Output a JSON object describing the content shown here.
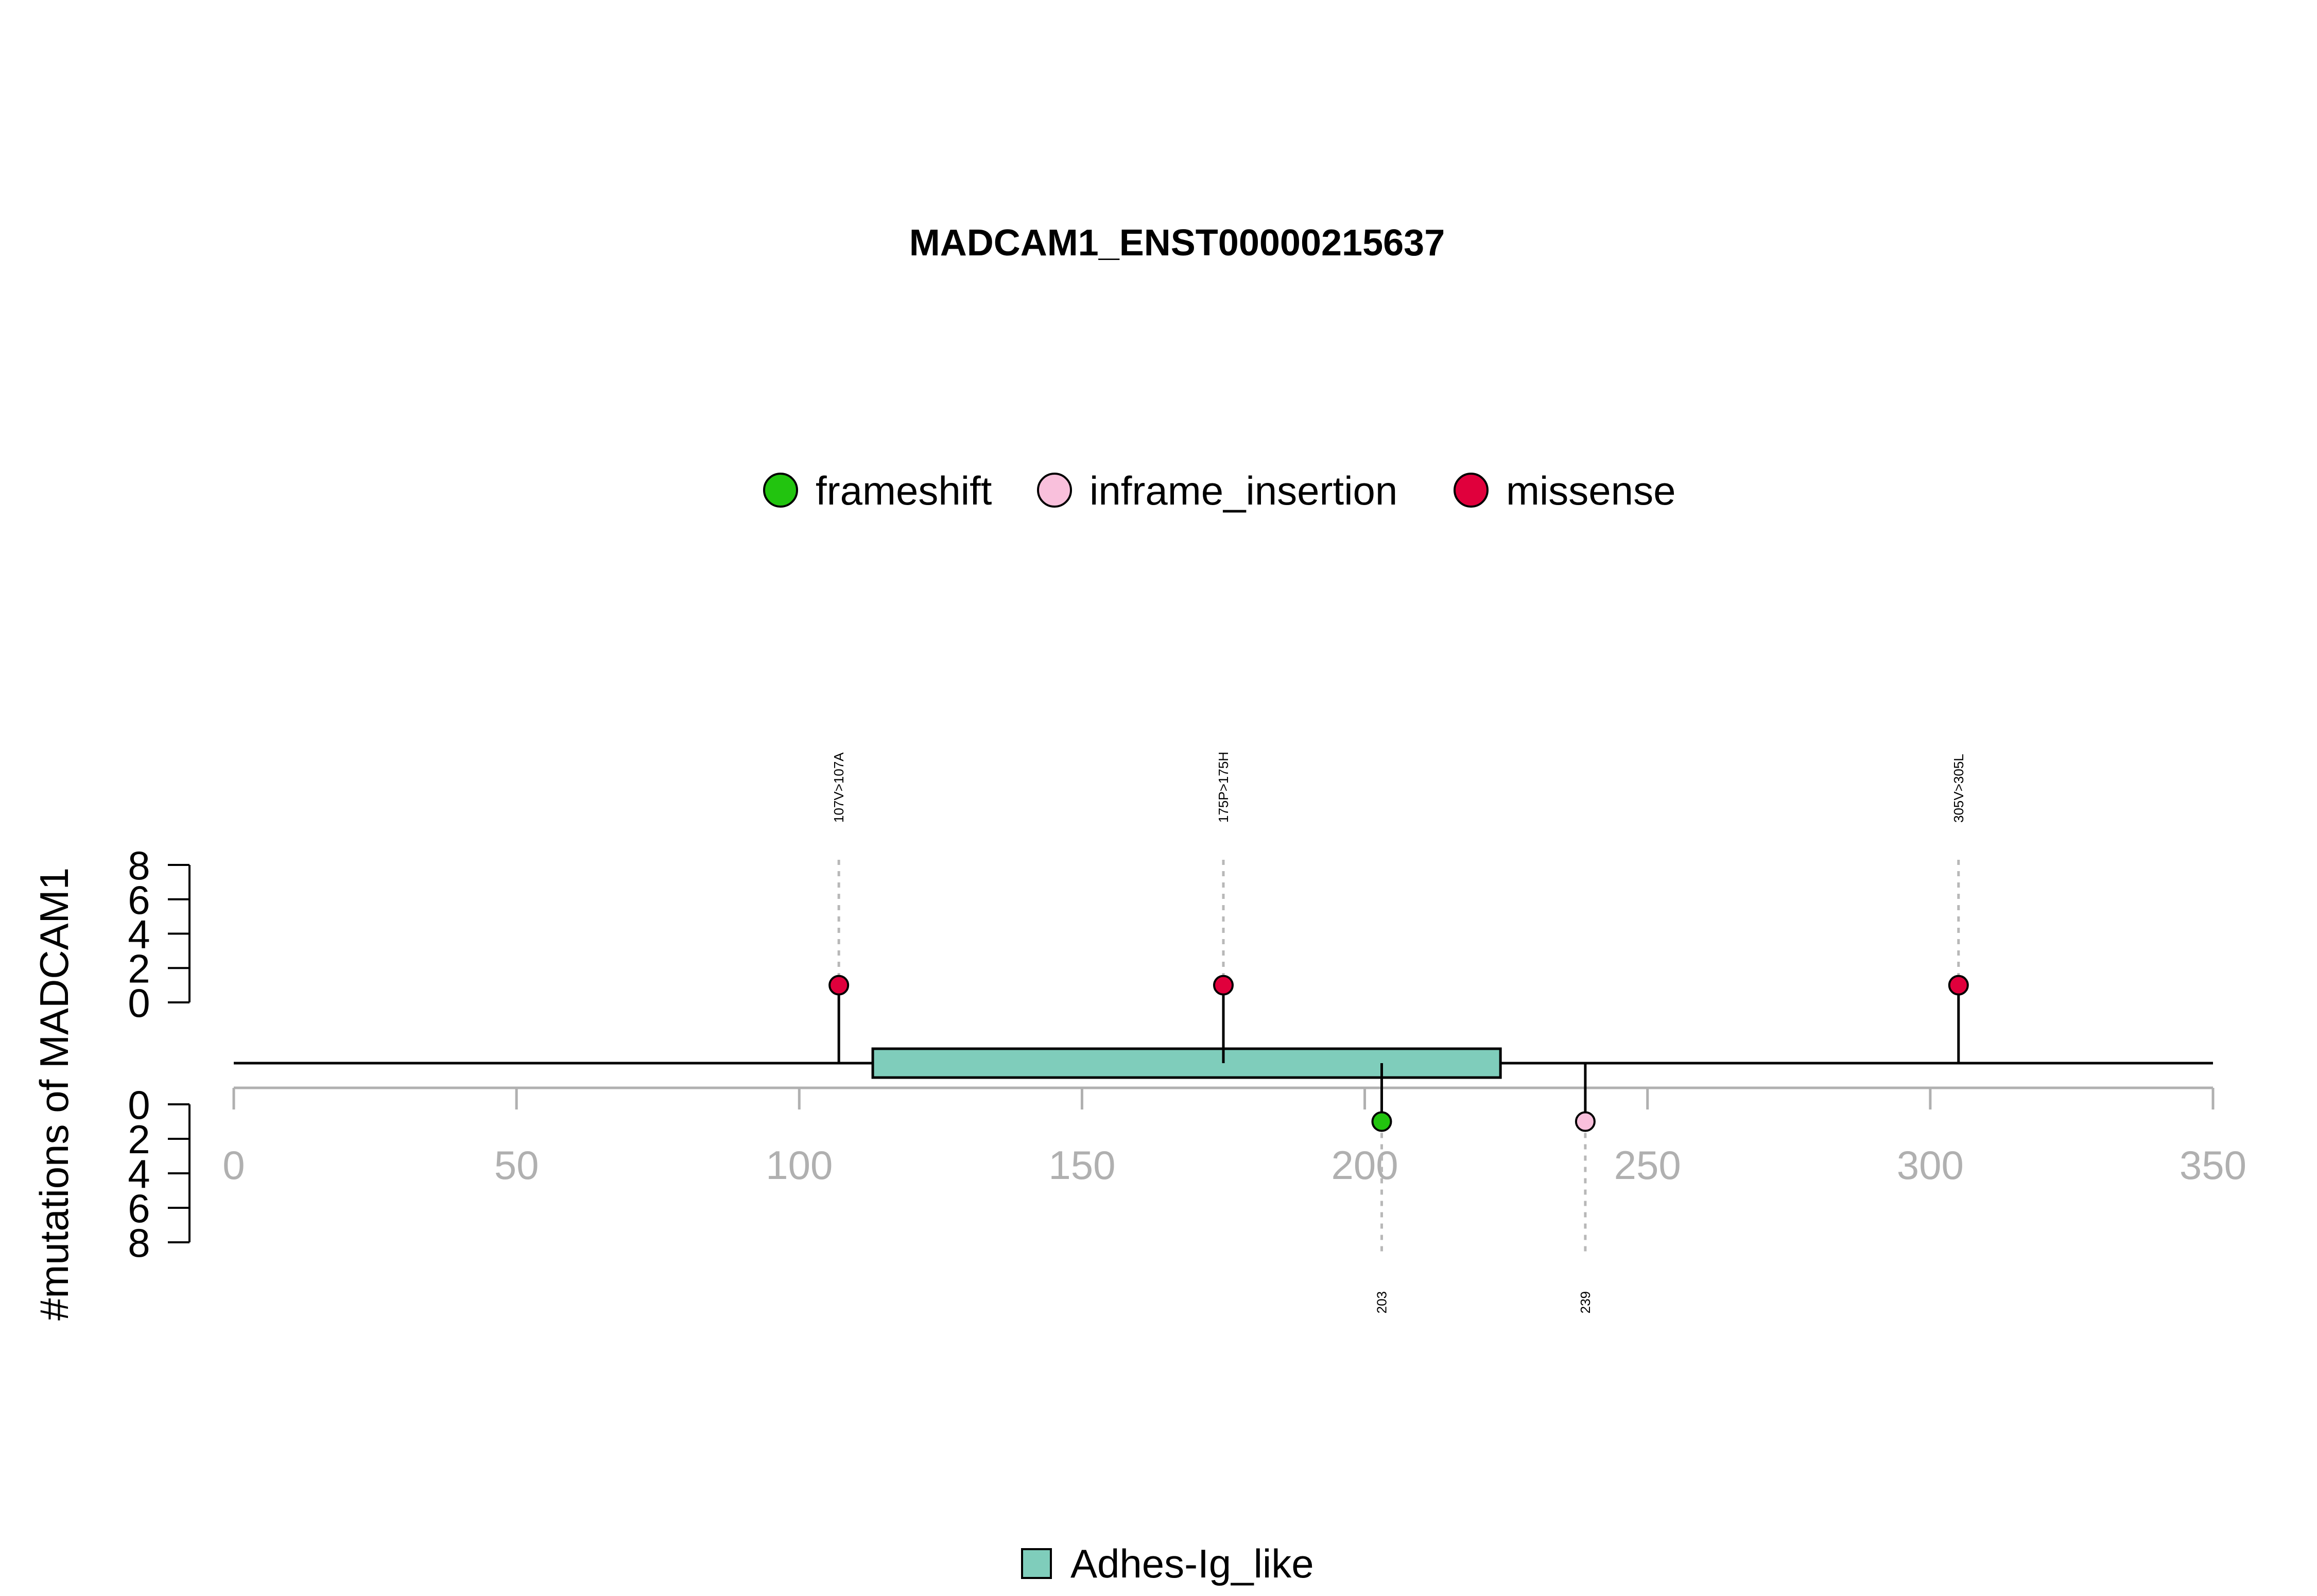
{
  "chart_data": {
    "type": "lollipop",
    "title": "MADCAM1_ENST00000215637",
    "ylabel": "#mutations of MADCAM1",
    "xlim": [
      0,
      350
    ],
    "x_ticks": [
      "0",
      "50",
      "100",
      "150",
      "200",
      "250",
      "300",
      "350"
    ],
    "y_ticks": [
      "0",
      "2",
      "4",
      "6",
      "8"
    ],
    "y_max": 8,
    "protein_length": 350,
    "legend_mutations": [
      {
        "name": "frameshift",
        "color": "#22c40f"
      },
      {
        "name": "inframe_insertion",
        "color": "#f9c0dc"
      },
      {
        "name": "missense",
        "color": "#e0003c"
      }
    ],
    "legend_domains": [
      {
        "name": "Adhes-Ig_like",
        "color": "#7fcdbb"
      }
    ],
    "domains": [
      {
        "name": "Adhes-Ig_like",
        "start": 113,
        "end": 224,
        "color": "#7fcdbb"
      }
    ],
    "mutations_top": [
      {
        "position": 107,
        "count": 1,
        "type": "missense",
        "label": "107V>107A"
      },
      {
        "position": 175,
        "count": 1,
        "type": "missense",
        "label": "175P>175H"
      },
      {
        "position": 305,
        "count": 1,
        "type": "missense",
        "label": "305V>305L"
      }
    ],
    "mutations_bottom": [
      {
        "position": 203,
        "count": 1,
        "type": "frameshift",
        "label": "203"
      },
      {
        "position": 239,
        "count": 1,
        "type": "inframe_insertion",
        "label": "239"
      }
    ]
  }
}
